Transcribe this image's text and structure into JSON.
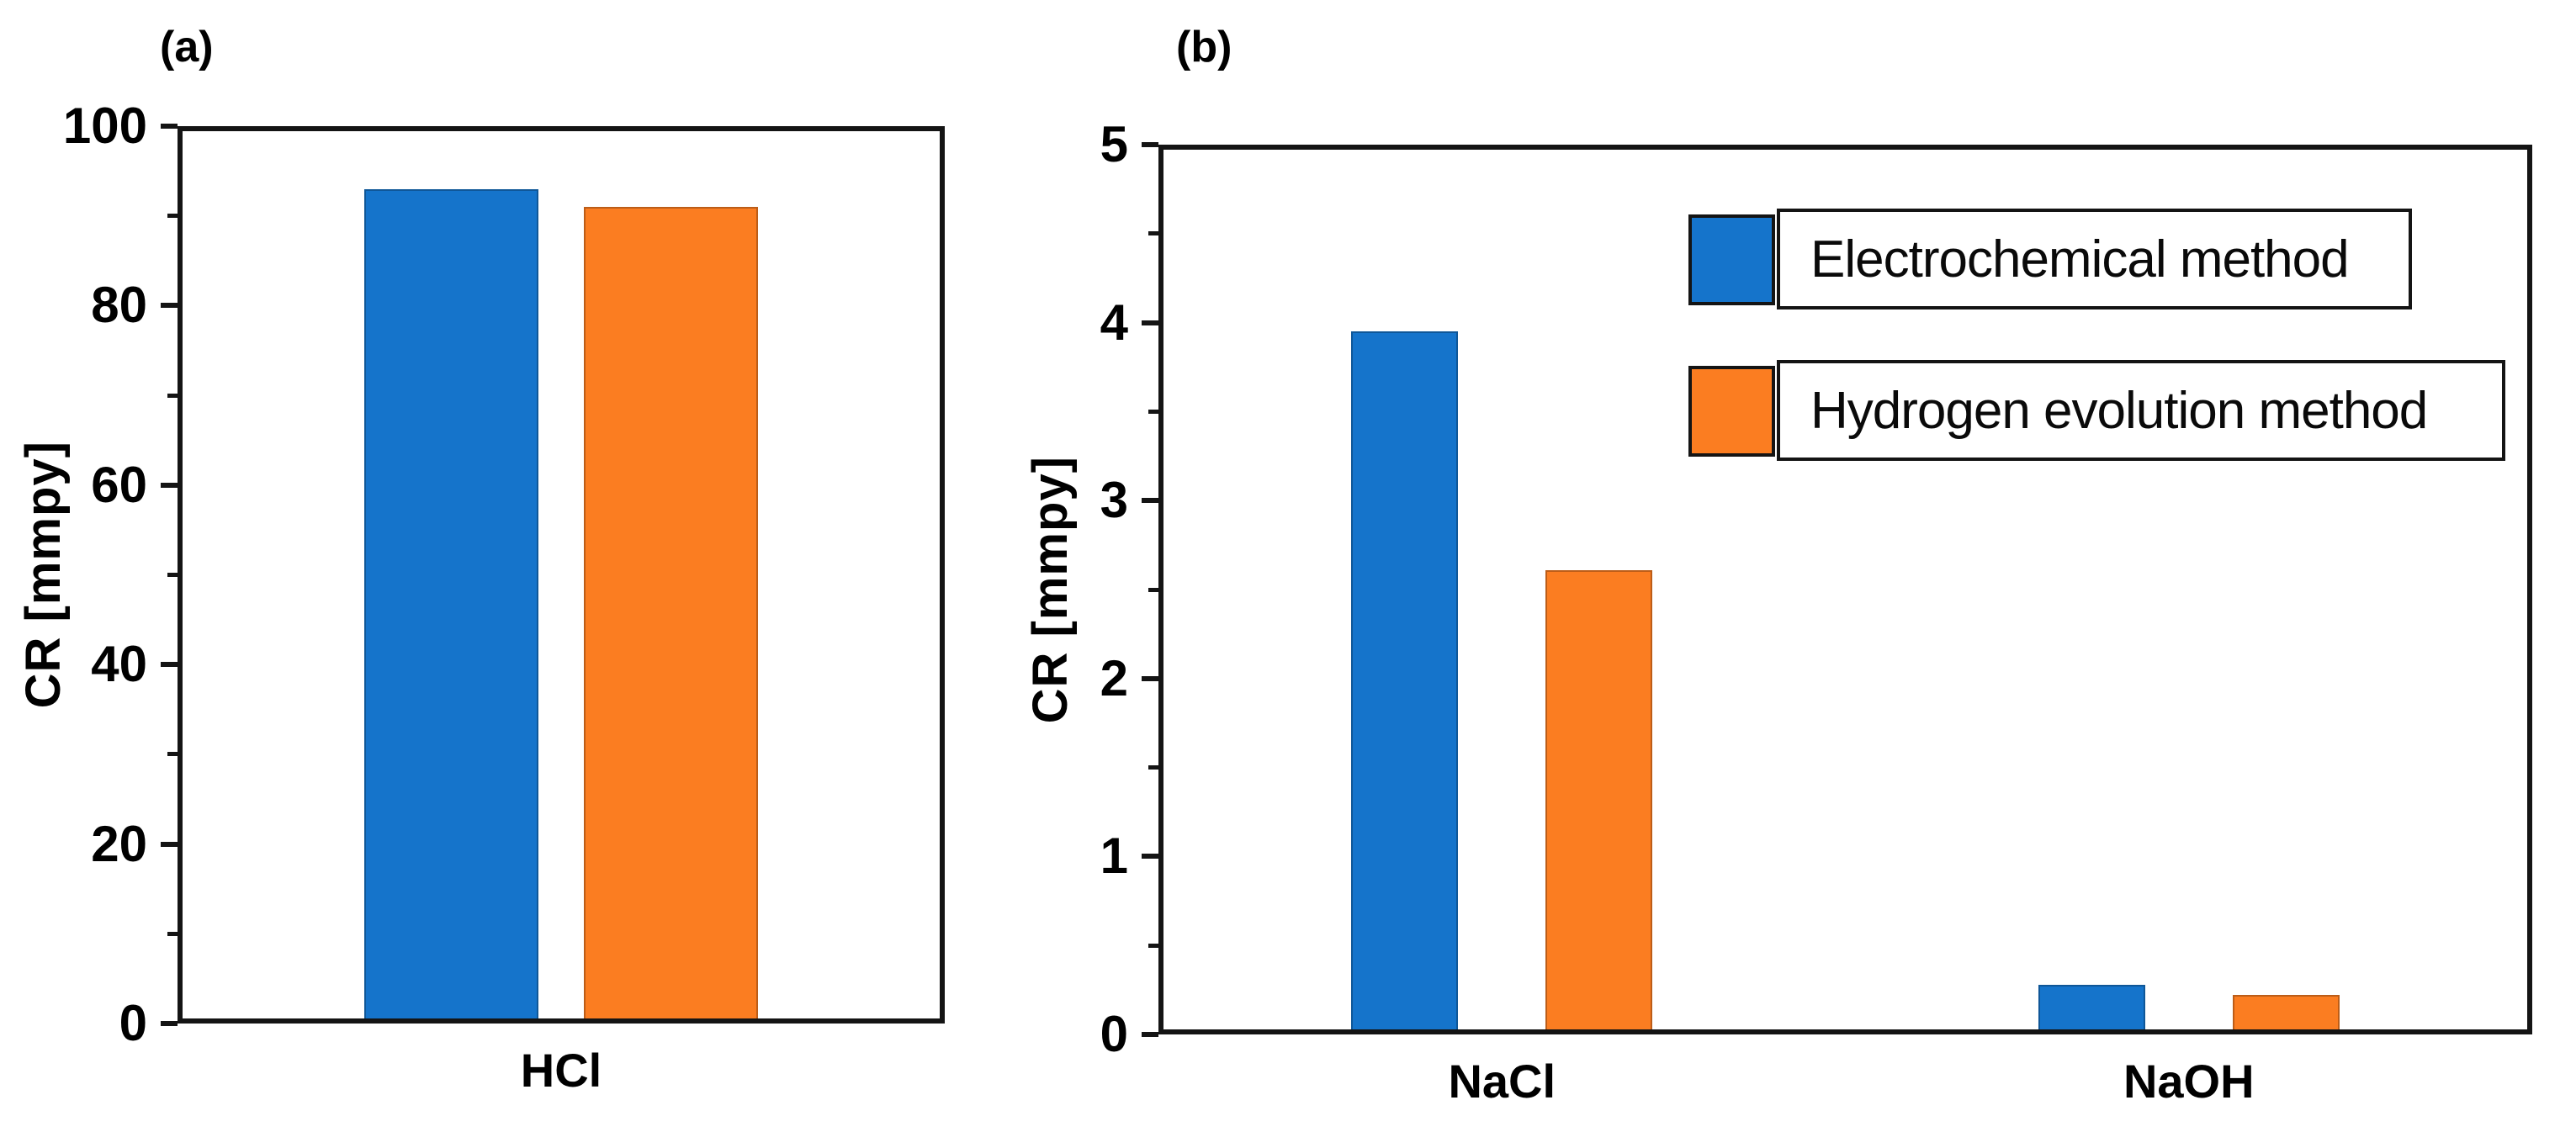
{
  "chart_data": [
    {
      "type": "bar",
      "panel_label": "(a)",
      "ylabel": "CR [mmpy]",
      "ylim": [
        0,
        100
      ],
      "yticks": [
        0,
        20,
        40,
        60,
        80,
        100
      ],
      "minor_tick_step": 10,
      "grid": false,
      "categories": [
        "HCl"
      ],
      "series": [
        {
          "name": "Electrochemical method",
          "values": [
            93
          ]
        },
        {
          "name": "Hydrogen evolution method",
          "values": [
            91
          ]
        }
      ]
    },
    {
      "type": "bar",
      "panel_label": "(b)",
      "ylabel": "CR [mmpy]",
      "ylim": [
        0,
        5
      ],
      "yticks": [
        0,
        1,
        2,
        3,
        4,
        5
      ],
      "minor_tick_step": 0.5,
      "grid": false,
      "legend_position": "upper-right-inside",
      "categories": [
        "NaCl",
        "NaOH"
      ],
      "series": [
        {
          "name": "Electrochemical method",
          "values": [
            3.95,
            0.28
          ]
        },
        {
          "name": "Hydrogen evolution method",
          "values": [
            2.61,
            0.22
          ]
        }
      ]
    }
  ],
  "legend": {
    "items": [
      {
        "label": "Electrochemical method",
        "color": "#1574CB"
      },
      {
        "label": "Hydrogen evolution method",
        "color": "#FB7D21"
      }
    ]
  },
  "style": {
    "series_colors": [
      "#1574CB",
      "#FB7D21"
    ],
    "axis_color": "#141414",
    "background": "#FFFFFF"
  }
}
